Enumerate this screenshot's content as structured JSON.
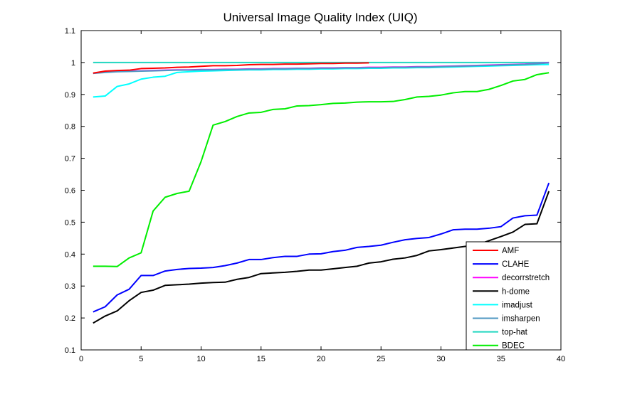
{
  "chart_data": {
    "type": "line",
    "title": "Universal Image Quality Index (UIQ)",
    "xlabel": "",
    "ylabel": "",
    "xlim": [
      0,
      40
    ],
    "ylim": [
      0.1,
      1.1
    ],
    "xticks": [
      0,
      5,
      10,
      15,
      20,
      25,
      30,
      35,
      40
    ],
    "yticks": [
      0.1,
      0.2,
      0.3,
      0.4,
      0.5,
      0.6,
      0.7,
      0.8,
      0.9,
      1,
      1.1
    ],
    "ytick_labels": [
      "0.1",
      "0.2",
      "0.3",
      "0.4",
      "0.5",
      "0.6",
      "0.7",
      "0.8",
      "0.9",
      "1",
      "1.1"
    ],
    "grid": false,
    "legend_position": "bottom-right",
    "x": [
      1,
      2,
      3,
      4,
      5,
      6,
      7,
      8,
      9,
      10,
      11,
      12,
      13,
      14,
      15,
      16,
      17,
      18,
      19,
      20,
      21,
      22,
      23,
      24,
      25,
      26,
      27,
      28,
      29,
      30,
      31,
      32,
      33,
      34,
      35,
      36,
      37,
      38,
      39
    ],
    "series": [
      {
        "name": "AMF",
        "color": "#ff0000",
        "x": [
          1,
          2,
          3,
          4,
          5,
          6,
          7,
          8,
          9,
          10,
          11,
          12,
          13,
          14,
          15,
          16,
          17,
          18,
          19,
          20,
          21,
          22,
          23,
          24
        ],
        "values": [
          0.967,
          0.973,
          0.975,
          0.976,
          0.981,
          0.982,
          0.983,
          0.985,
          0.986,
          0.988,
          0.99,
          0.99,
          0.991,
          0.993,
          0.994,
          0.994,
          0.995,
          0.995,
          0.996,
          0.997,
          0.997,
          0.998,
          0.998,
          0.999
        ]
      },
      {
        "name": "CLAHE",
        "color": "#0000ff",
        "values": [
          0.219,
          0.235,
          0.272,
          0.29,
          0.333,
          0.333,
          0.347,
          0.352,
          0.355,
          0.356,
          0.358,
          0.364,
          0.372,
          0.383,
          0.383,
          0.389,
          0.393,
          0.393,
          0.4,
          0.401,
          0.408,
          0.412,
          0.421,
          0.424,
          0.428,
          0.437,
          0.445,
          0.449,
          0.452,
          0.463,
          0.476,
          0.478,
          0.478,
          0.481,
          0.486,
          0.513,
          0.52,
          0.522,
          0.623
        ]
      },
      {
        "name": "decorrstretch",
        "color": "#ff00ff",
        "values": [
          0.966,
          0.97,
          0.972,
          0.973,
          0.974,
          0.975,
          0.976,
          0.977,
          0.977,
          0.978,
          0.978,
          0.979,
          0.979,
          0.98,
          0.98,
          0.981,
          0.981,
          0.982,
          0.982,
          0.983,
          0.983,
          0.984,
          0.984,
          0.985,
          0.985,
          0.986,
          0.986,
          0.987,
          0.987,
          0.988,
          0.989,
          0.99,
          0.991,
          0.992,
          0.993,
          0.994,
          0.995,
          0.997,
          1.0
        ]
      },
      {
        "name": "h-dome",
        "color": "#000000",
        "values": [
          0.184,
          0.206,
          0.222,
          0.254,
          0.28,
          0.287,
          0.302,
          0.304,
          0.306,
          0.309,
          0.311,
          0.312,
          0.321,
          0.327,
          0.339,
          0.341,
          0.343,
          0.346,
          0.35,
          0.35,
          0.354,
          0.358,
          0.362,
          0.372,
          0.376,
          0.384,
          0.388,
          0.396,
          0.41,
          0.414,
          0.419,
          0.424,
          0.429,
          0.442,
          0.455,
          0.469,
          0.493,
          0.495,
          0.597
        ]
      },
      {
        "name": "imadjust",
        "color": "#00ffff",
        "values": [
          0.892,
          0.895,
          0.925,
          0.933,
          0.948,
          0.954,
          0.957,
          0.969,
          0.971,
          0.973,
          0.974,
          0.975,
          0.976,
          0.977,
          0.977,
          0.978,
          0.978,
          0.979,
          0.979,
          0.98,
          0.98,
          0.981,
          0.981,
          0.982,
          0.982,
          0.983,
          0.983,
          0.984,
          0.984,
          0.985,
          0.986,
          0.987,
          0.988,
          0.989,
          0.99,
          0.991,
          0.992,
          0.993,
          0.994
        ]
      },
      {
        "name": "imsharpen",
        "color": "#4f97c2",
        "values": [
          0.966,
          0.969,
          0.971,
          0.972,
          0.973,
          0.974,
          0.975,
          0.976,
          0.976,
          0.977,
          0.977,
          0.978,
          0.978,
          0.979,
          0.979,
          0.98,
          0.98,
          0.981,
          0.981,
          0.982,
          0.982,
          0.983,
          0.983,
          0.984,
          0.984,
          0.985,
          0.985,
          0.986,
          0.986,
          0.987,
          0.988,
          0.989,
          0.99,
          0.991,
          0.992,
          0.993,
          0.994,
          0.996,
          0.999
        ]
      },
      {
        "name": "top-hat",
        "color": "#20d6c0",
        "values": [
          1,
          1,
          1,
          1,
          1,
          1,
          1,
          1,
          1,
          1,
          1,
          1,
          1,
          1,
          1,
          1,
          1,
          1,
          1,
          1,
          1,
          1,
          1,
          1,
          1,
          1,
          1,
          1,
          1,
          1,
          1,
          1,
          1,
          1,
          1,
          1,
          1,
          1,
          1
        ]
      },
      {
        "name": "BDEC",
        "color": "#00ee00",
        "values": [
          0.362,
          0.362,
          0.361,
          0.388,
          0.404,
          0.535,
          0.578,
          0.59,
          0.597,
          0.69,
          0.804,
          0.815,
          0.831,
          0.842,
          0.844,
          0.853,
          0.855,
          0.864,
          0.865,
          0.868,
          0.872,
          0.873,
          0.876,
          0.877,
          0.877,
          0.878,
          0.884,
          0.892,
          0.894,
          0.898,
          0.905,
          0.909,
          0.909,
          0.916,
          0.928,
          0.942,
          0.947,
          0.962,
          0.968
        ]
      }
    ]
  }
}
